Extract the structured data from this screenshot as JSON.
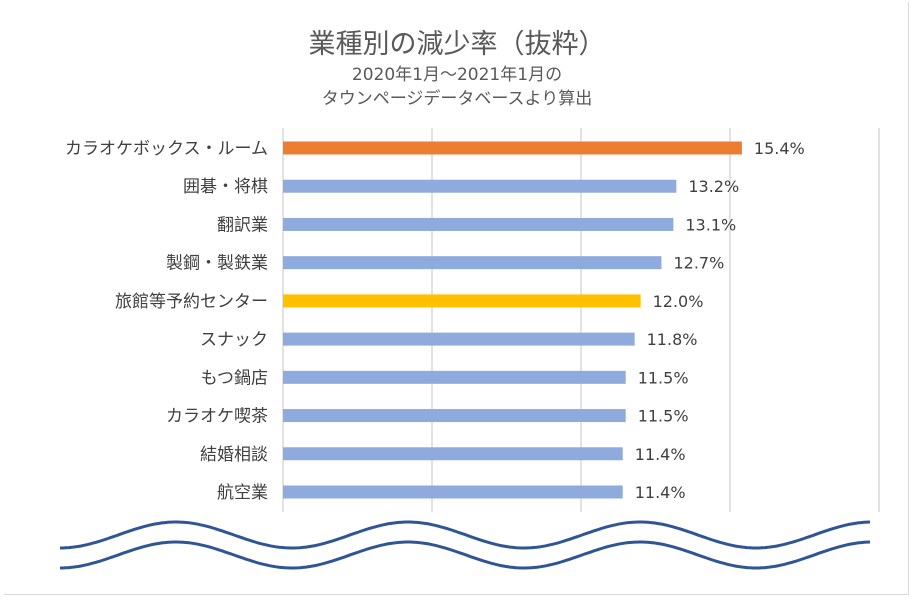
{
  "chart_data": {
    "type": "bar",
    "orientation": "horizontal",
    "title": "業種別の減少率（抜粋）",
    "subtitle_lines": [
      "2020年1月～2021年1月の",
      "タウンページデータベースより算出"
    ],
    "categories": [
      "カラオケボックス・ルーム",
      "囲碁・将棋",
      "翻訳業",
      "製鋼・製鉄業",
      "旅館等予約センター",
      "スナック",
      "もつ鍋店",
      "カラオケ喫茶",
      "結婚相談",
      "航空業"
    ],
    "values": [
      15.4,
      13.2,
      13.1,
      12.7,
      12.0,
      11.8,
      11.5,
      11.5,
      11.4,
      11.4
    ],
    "data_labels": [
      "15.4%",
      "13.2%",
      "13.1%",
      "12.7%",
      "12.0%",
      "11.8%",
      "11.5%",
      "11.5%",
      "11.4%",
      "11.4%"
    ],
    "unit": "%",
    "xlim": [
      0,
      20
    ],
    "grid_step": 5,
    "grid": true,
    "axis_tick_labels_shown": false,
    "legend": "none",
    "colors": {
      "default": "#8FAADC",
      "highlight_1": "#ED7D31",
      "highlight_2": "#FFC000",
      "grid": "#D9D9D9",
      "axis_break_wave": "#2F5597"
    },
    "bar_colors": [
      "#ED7D31",
      "#8FAADC",
      "#8FAADC",
      "#8FAADC",
      "#FFC000",
      "#8FAADC",
      "#8FAADC",
      "#8FAADC",
      "#8FAADC",
      "#8FAADC"
    ],
    "axis_break": "double wavy line below the chart"
  }
}
